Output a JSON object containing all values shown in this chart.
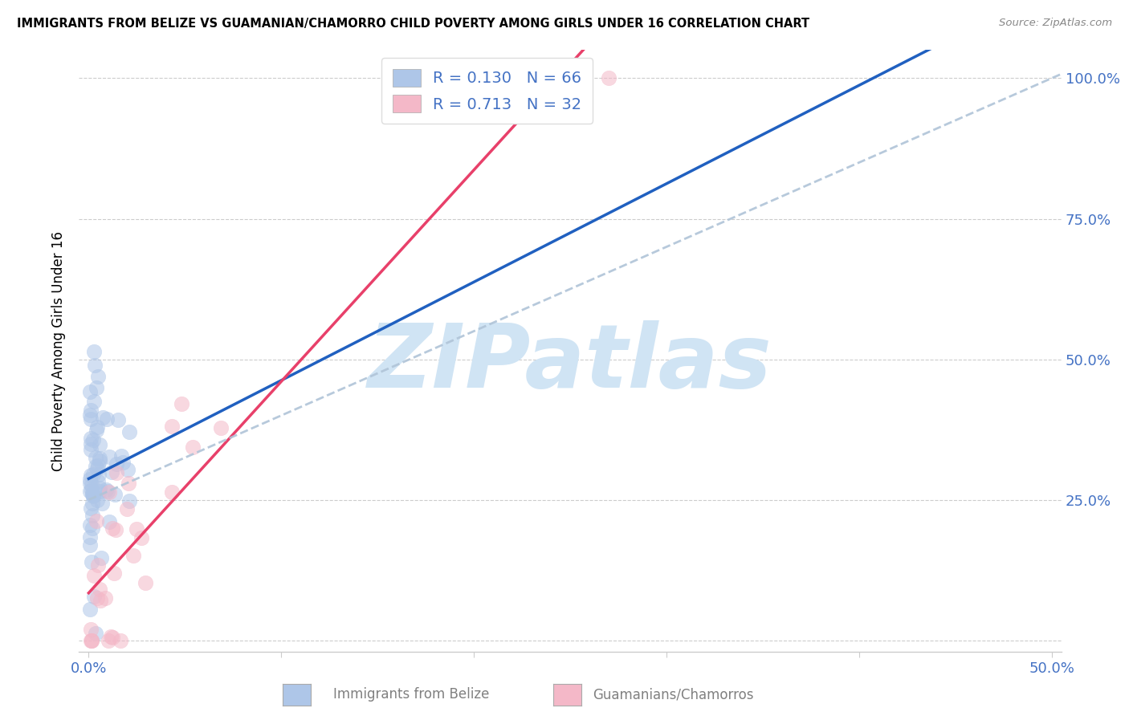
{
  "title": "IMMIGRANTS FROM BELIZE VS GUAMANIAN/CHAMORRO CHILD POVERTY AMONG GIRLS UNDER 16 CORRELATION CHART",
  "source": "Source: ZipAtlas.com",
  "xlabel_blue": "Immigrants from Belize",
  "xlabel_pink": "Guamanians/Chamorros",
  "ylabel": "Child Poverty Among Girls Under 16",
  "R_blue": 0.13,
  "N_blue": 66,
  "R_pink": 0.713,
  "N_pink": 32,
  "color_blue": "#aec6e8",
  "color_pink": "#f4b8c8",
  "line_blue": "#2060c0",
  "line_pink": "#e8406a",
  "line_gray_dashed": "#b0c4d8",
  "watermark": "ZIPatlas",
  "watermark_color": "#d0e4f4",
  "legend_blue_label": "R = 0.130   N = 66",
  "legend_pink_label": "R = 0.713   N = 32",
  "legend_text_color": "#4472c4",
  "tick_color": "#4472c4",
  "source_color": "#888888",
  "ylabel_color": "#000000",
  "bottom_legend_text_color": "#808080"
}
